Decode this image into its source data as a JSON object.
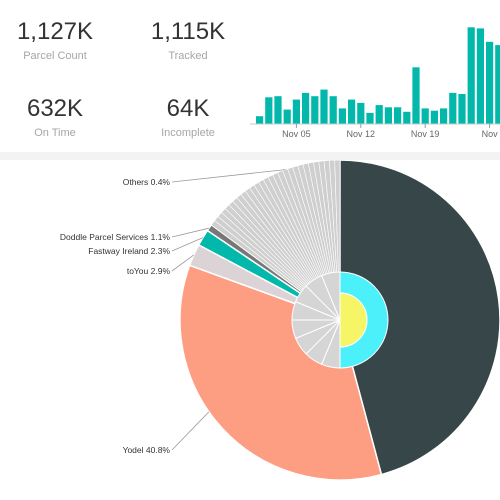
{
  "kpis": [
    {
      "value": "1,127K",
      "label": "Parcel Count"
    },
    {
      "value": "1,115K",
      "label": "Tracked"
    },
    {
      "value": "632K",
      "label": "On Time"
    },
    {
      "value": "64K",
      "label": "Incomplete"
    }
  ],
  "chart_data": [
    {
      "type": "bar",
      "x_tick_labels": [
        "Nov 05",
        "Nov 12",
        "Nov 19",
        "Nov"
      ],
      "values": [
        7,
        24,
        25,
        13,
        22,
        28,
        25,
        31,
        25,
        14,
        22,
        19,
        10,
        17,
        15,
        15,
        11,
        51,
        14,
        12,
        14,
        28,
        27,
        87,
        86,
        74,
        71
      ],
      "ylim": [
        0,
        90
      ],
      "color": "#01b8aa",
      "title": "",
      "xlabel": "",
      "ylabel": ""
    },
    {
      "type": "pie",
      "labels": [
        "Others",
        "Doddle Parcel Services",
        "Fastway Ireland",
        "toYou",
        "Yodel"
      ],
      "values": [
        0.4,
        1.1,
        2.3,
        2.9,
        40.8
      ],
      "label_text": [
        "Others 0.4%",
        "Doddle Parcel Services 1.1%",
        "Fastway Ireland 2.3%",
        "toYou 2.9%",
        "Yodel 40.8%"
      ],
      "colors": {
        "dark": "#374649",
        "yodel": "#fd9e82",
        "toyou": "#dcd3d6",
        "fastway": "#01b8aa",
        "doddle": "#777777",
        "others": "#cfcfcf",
        "inner_ring": "#4cf0fa",
        "inner_center": "#f5f566",
        "inner_small": "#d5d5d5"
      }
    }
  ]
}
